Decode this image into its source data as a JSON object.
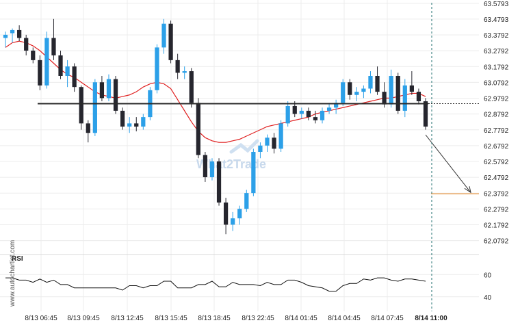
{
  "chart_data": {
    "type": "candlestick",
    "price_axis": {
      "ticks": [
        "63.5793",
        "63.4793",
        "63.3792",
        "63.2792",
        "63.1792",
        "63.0792",
        "62.9792",
        "62.8792",
        "62.7792",
        "62.6792",
        "62.5792",
        "62.4792",
        "62.3792",
        "62.2792",
        "62.1792",
        "62.0792"
      ],
      "ylim": [
        62.0,
        63.6
      ]
    },
    "time_labels": [
      "8/13 06:45",
      "8/13 09:45",
      "8/13 12:45",
      "8/13 15:45",
      "8/13 18:45",
      "8/13 22:45",
      "8/14 01:45",
      "8/14 04:45",
      "8/14 07:45",
      "8/14 11:00"
    ],
    "support_level": 62.945,
    "target_level": 62.375,
    "current_time_label": "8/14 11:00",
    "colors": {
      "up": "#2ca0e8",
      "down": "#26262e",
      "ma": "#e02020",
      "level": "#2a2a2a",
      "target": "#e8923a",
      "projection": "#333333"
    },
    "moving_average": [
      63.3,
      63.33,
      63.34,
      63.33,
      63.31,
      63.28,
      63.24,
      63.2,
      63.16,
      63.13,
      63.11,
      63.08,
      63.05,
      63.02,
      63.0,
      62.99,
      62.98,
      62.99,
      63.0,
      63.02,
      63.05,
      63.07,
      63.08,
      63.07,
      63.04,
      62.97,
      62.9,
      62.83,
      62.77,
      62.73,
      62.71,
      62.7,
      62.7,
      62.71,
      62.72,
      62.74,
      62.76,
      62.78,
      62.8,
      62.81,
      62.82,
      62.83,
      62.84,
      62.85,
      62.86,
      62.88,
      62.89,
      62.9,
      62.91,
      62.92,
      62.93,
      62.94,
      62.95,
      62.96,
      62.97,
      62.98,
      62.98,
      62.99,
      63.0,
      63.01,
      63.01,
      62.99
    ],
    "candles": [
      {
        "o": 63.36,
        "h": 63.4,
        "l": 63.3,
        "c": 63.38
      },
      {
        "o": 63.39,
        "h": 63.42,
        "l": 63.33,
        "c": 63.41
      },
      {
        "o": 63.41,
        "h": 63.44,
        "l": 63.34,
        "c": 63.36
      },
      {
        "o": 63.36,
        "h": 63.38,
        "l": 63.25,
        "c": 63.28
      },
      {
        "o": 63.28,
        "h": 63.3,
        "l": 63.2,
        "c": 63.22
      },
      {
        "o": 63.22,
        "h": 63.25,
        "l": 63.03,
        "c": 63.06
      },
      {
        "o": 63.06,
        "h": 63.4,
        "l": 63.04,
        "c": 63.36
      },
      {
        "o": 63.36,
        "h": 63.48,
        "l": 63.22,
        "c": 63.25
      },
      {
        "o": 63.25,
        "h": 63.28,
        "l": 63.1,
        "c": 63.12
      },
      {
        "o": 63.12,
        "h": 63.22,
        "l": 63.05,
        "c": 63.18
      },
      {
        "o": 63.18,
        "h": 63.2,
        "l": 63.02,
        "c": 63.05
      },
      {
        "o": 63.05,
        "h": 63.06,
        "l": 62.78,
        "c": 62.82
      },
      {
        "o": 62.82,
        "h": 62.84,
        "l": 62.7,
        "c": 62.76
      },
      {
        "o": 62.76,
        "h": 63.1,
        "l": 62.74,
        "c": 63.08
      },
      {
        "o": 63.08,
        "h": 63.12,
        "l": 62.96,
        "c": 62.98
      },
      {
        "o": 62.98,
        "h": 63.13,
        "l": 62.96,
        "c": 63.1
      },
      {
        "o": 63.1,
        "h": 63.12,
        "l": 62.88,
        "c": 62.9
      },
      {
        "o": 62.9,
        "h": 62.92,
        "l": 62.78,
        "c": 62.8
      },
      {
        "o": 62.8,
        "h": 62.86,
        "l": 62.76,
        "c": 62.82
      },
      {
        "o": 62.82,
        "h": 62.86,
        "l": 62.77,
        "c": 62.8
      },
      {
        "o": 62.8,
        "h": 62.88,
        "l": 62.78,
        "c": 62.86
      },
      {
        "o": 62.86,
        "h": 63.05,
        "l": 62.84,
        "c": 63.03
      },
      {
        "o": 63.03,
        "h": 63.32,
        "l": 63.01,
        "c": 63.3
      },
      {
        "o": 63.3,
        "h": 63.48,
        "l": 63.26,
        "c": 63.45
      },
      {
        "o": 63.45,
        "h": 63.47,
        "l": 63.2,
        "c": 63.22
      },
      {
        "o": 63.22,
        "h": 63.26,
        "l": 63.1,
        "c": 63.14
      },
      {
        "o": 63.14,
        "h": 63.18,
        "l": 63.1,
        "c": 63.15
      },
      {
        "o": 63.15,
        "h": 63.17,
        "l": 62.92,
        "c": 62.95
      },
      {
        "o": 62.95,
        "h": 62.98,
        "l": 62.6,
        "c": 62.62
      },
      {
        "o": 62.62,
        "h": 62.64,
        "l": 62.45,
        "c": 62.48
      },
      {
        "o": 62.48,
        "h": 62.6,
        "l": 62.46,
        "c": 62.58
      },
      {
        "o": 62.58,
        "h": 62.6,
        "l": 62.3,
        "c": 62.32
      },
      {
        "o": 62.32,
        "h": 62.35,
        "l": 62.12,
        "c": 62.18
      },
      {
        "o": 62.18,
        "h": 62.26,
        "l": 62.14,
        "c": 62.22
      },
      {
        "o": 62.22,
        "h": 62.3,
        "l": 62.18,
        "c": 62.28
      },
      {
        "o": 62.28,
        "h": 62.4,
        "l": 62.26,
        "c": 62.38
      },
      {
        "o": 62.38,
        "h": 62.66,
        "l": 62.36,
        "c": 62.64
      },
      {
        "o": 62.64,
        "h": 62.7,
        "l": 62.6,
        "c": 62.68
      },
      {
        "o": 62.68,
        "h": 62.75,
        "l": 62.64,
        "c": 62.73
      },
      {
        "o": 62.73,
        "h": 62.76,
        "l": 62.63,
        "c": 62.66
      },
      {
        "o": 62.66,
        "h": 62.84,
        "l": 62.64,
        "c": 62.82
      },
      {
        "o": 62.82,
        "h": 62.96,
        "l": 62.8,
        "c": 62.93
      },
      {
        "o": 62.93,
        "h": 62.96,
        "l": 62.86,
        "c": 62.88
      },
      {
        "o": 62.88,
        "h": 62.92,
        "l": 62.85,
        "c": 62.9
      },
      {
        "o": 62.9,
        "h": 62.92,
        "l": 62.84,
        "c": 62.86
      },
      {
        "o": 62.86,
        "h": 62.9,
        "l": 62.82,
        "c": 62.84
      },
      {
        "o": 62.84,
        "h": 62.92,
        "l": 62.82,
        "c": 62.9
      },
      {
        "o": 62.9,
        "h": 62.95,
        "l": 62.88,
        "c": 62.92
      },
      {
        "o": 62.92,
        "h": 62.97,
        "l": 62.88,
        "c": 62.95
      },
      {
        "o": 62.95,
        "h": 63.1,
        "l": 62.93,
        "c": 63.08
      },
      {
        "o": 63.08,
        "h": 63.1,
        "l": 62.97,
        "c": 63.0
      },
      {
        "o": 63.0,
        "h": 63.05,
        "l": 62.96,
        "c": 63.02
      },
      {
        "o": 63.02,
        "h": 63.06,
        "l": 62.98,
        "c": 63.04
      },
      {
        "o": 63.04,
        "h": 63.15,
        "l": 63.01,
        "c": 63.12
      },
      {
        "o": 63.12,
        "h": 63.18,
        "l": 63.0,
        "c": 63.02
      },
      {
        "o": 63.02,
        "h": 63.08,
        "l": 62.92,
        "c": 62.94
      },
      {
        "o": 62.94,
        "h": 63.16,
        "l": 62.92,
        "c": 63.12
      },
      {
        "o": 63.12,
        "h": 63.14,
        "l": 62.88,
        "c": 62.9
      },
      {
        "o": 62.9,
        "h": 63.1,
        "l": 62.86,
        "c": 63.06
      },
      {
        "o": 63.06,
        "h": 63.15,
        "l": 63.0,
        "c": 63.02
      },
      {
        "o": 63.02,
        "h": 63.04,
        "l": 62.94,
        "c": 62.96
      },
      {
        "o": 62.96,
        "h": 62.98,
        "l": 62.78,
        "c": 62.8
      }
    ],
    "rsi": {
      "title": "RSI",
      "ticks": [
        "60",
        "40"
      ],
      "ylim": [
        30,
        70
      ],
      "values": [
        57,
        57,
        55,
        55,
        53,
        56,
        53,
        55,
        51,
        51,
        48,
        48,
        48,
        48,
        48,
        48,
        48,
        46,
        50,
        50,
        48,
        50,
        50,
        54,
        54,
        48,
        48,
        48,
        51,
        51,
        54,
        49,
        49,
        53,
        51,
        51,
        51,
        50,
        53,
        51,
        51,
        55,
        55,
        53,
        50,
        49,
        48,
        45,
        45,
        50,
        52,
        52,
        56,
        55,
        57,
        57,
        55,
        54,
        56,
        56,
        55,
        54
      ]
    }
  },
  "watermark": {
    "brand": "What2Trade",
    "side_text": "www.autochartist.com"
  }
}
